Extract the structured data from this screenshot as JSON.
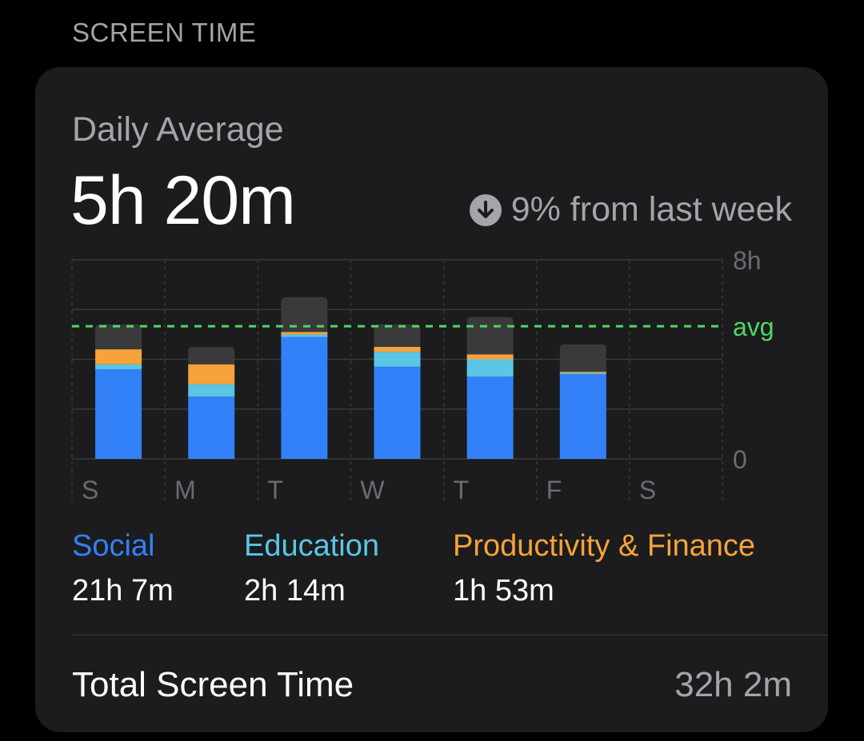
{
  "section": {
    "title": "SCREEN TIME"
  },
  "summary": {
    "label": "Daily Average",
    "value": "5h 20m",
    "trend_text": "9% from last week",
    "trend_icon": "arrow-down-circle-icon"
  },
  "colors": {
    "social": "#3281f8",
    "education": "#5ac6e6",
    "productivity": "#f6a33a",
    "other": "#3a3a3c",
    "avg_line": "#4cd964",
    "grid": "#3a3a3c",
    "tick": "#6b6b70"
  },
  "chart_data": {
    "type": "bar",
    "stacked": true,
    "categories": [
      "S",
      "M",
      "T",
      "W",
      "T",
      "F",
      "S"
    ],
    "series": [
      {
        "name": "Social",
        "values": [
          3.6,
          2.5,
          4.9,
          3.7,
          3.3,
          3.4,
          0
        ]
      },
      {
        "name": "Education",
        "values": [
          0.2,
          0.5,
          0.1,
          0.6,
          0.7,
          0.05,
          0
        ]
      },
      {
        "name": "Productivity & Finance",
        "values": [
          0.6,
          0.8,
          0.1,
          0.2,
          0.2,
          0.05,
          0
        ]
      },
      {
        "name": "",
        "values": [
          1.0,
          0.7,
          1.4,
          0.9,
          1.5,
          1.1,
          0
        ]
      }
    ],
    "ylim": [
      0,
      8
    ],
    "y_ticks": [
      "8h",
      "0"
    ],
    "avg_label": "avg",
    "avg_value": 5.33,
    "grid": true
  },
  "legend": [
    {
      "label": "Social",
      "value": "21h 7m"
    },
    {
      "label": "Education",
      "value": "2h 14m"
    },
    {
      "label": "Productivity & Finance",
      "value": "1h 53m"
    }
  ],
  "total": {
    "label": "Total Screen Time",
    "value": "32h 2m"
  }
}
